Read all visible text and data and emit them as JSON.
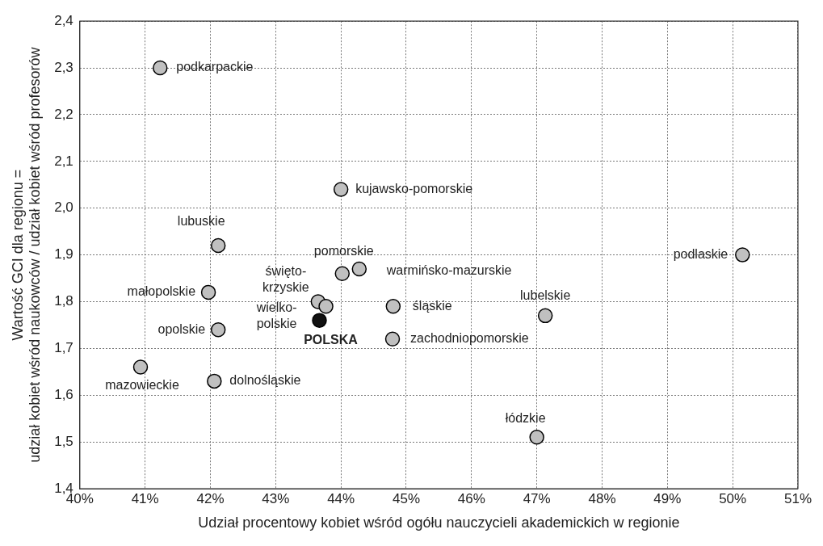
{
  "chart_data": {
    "type": "scatter",
    "xlabel": "Udział procentowy kobiet wśród ogółu nauczycieli akademickich w regionie",
    "ylabel": "Wartość GCI dla regionu =\nudział kobiet wśród naukowców / udział kobiet wśród profesorów",
    "x": [
      41.23,
      44.0,
      42.12,
      44.02,
      44.28,
      41.97,
      43.65,
      43.77,
      43.67,
      44.8,
      44.79,
      42.12,
      40.93,
      42.06,
      47.13,
      47.0,
      50.15
    ],
    "series": [
      {
        "colors": [
          "#c0c0c0",
          "#c0c0c0",
          "#c0c0c0",
          "#c0c0c0",
          "#c0c0c0",
          "#c0c0c0",
          "#c0c0c0",
          "#c0c0c0",
          "#111111",
          "#c0c0c0",
          "#c0c0c0",
          "#c0c0c0",
          "#c0c0c0",
          "#c0c0c0",
          "#c0c0c0",
          "#c0c0c0",
          "#c0c0c0"
        ],
        "values": [
          2.3,
          2.04,
          1.92,
          1.86,
          1.87,
          1.82,
          1.8,
          1.79,
          1.76,
          1.79,
          1.72,
          1.74,
          1.66,
          1.63,
          1.77,
          1.51,
          1.9
        ]
      }
    ],
    "marker": "circle",
    "annotations": [
      {
        "text": "podkarpackie",
        "x": 41.23,
        "y": 2.3
      },
      {
        "text": "kujawsko-pomorskie",
        "x": 44.0,
        "y": 2.04
      },
      {
        "text": "lubuskie",
        "x": 42.12,
        "y": 1.92
      },
      {
        "text": "pomorskie",
        "x": 44.02,
        "y": 1.86
      },
      {
        "text": "warmińsko-mazurskie",
        "x": 44.28,
        "y": 1.87
      },
      {
        "text": "małopolskie",
        "x": 41.97,
        "y": 1.82
      },
      {
        "text": "święto-\nkrzyskie",
        "x": 43.65,
        "y": 1.8
      },
      {
        "text": "wielko-\npolskie",
        "x": 43.77,
        "y": 1.79
      },
      {
        "text": "POLSKA",
        "x": 43.67,
        "y": 1.76
      },
      {
        "text": "śląskie",
        "x": 44.8,
        "y": 1.79
      },
      {
        "text": "zachodniopomorskie",
        "x": 44.79,
        "y": 1.72
      },
      {
        "text": "opolskie",
        "x": 42.12,
        "y": 1.74
      },
      {
        "text": "mazowieckie",
        "x": 40.93,
        "y": 1.66
      },
      {
        "text": "dolnośląskie",
        "x": 42.06,
        "y": 1.63
      },
      {
        "text": "lubelskie",
        "x": 47.13,
        "y": 1.77
      },
      {
        "text": "łódzkie",
        "x": 47.0,
        "y": 1.51
      },
      {
        "text": "podlaskie",
        "x": 50.15,
        "y": 1.9
      }
    ],
    "xlim": [
      40,
      51
    ],
    "xticks": [
      {
        "value": 40,
        "label": "40%"
      },
      {
        "value": 41,
        "label": "41%"
      },
      {
        "value": 42,
        "label": "42%"
      },
      {
        "value": 43,
        "label": "43%"
      },
      {
        "value": 44,
        "label": "44%"
      },
      {
        "value": 45,
        "label": "45%"
      },
      {
        "value": 46,
        "label": "46%"
      },
      {
        "value": 47,
        "label": "47%"
      },
      {
        "value": 48,
        "label": "48%"
      },
      {
        "value": 49,
        "label": "49%"
      },
      {
        "value": 50,
        "label": "50%"
      },
      {
        "value": 51,
        "label": "51%"
      }
    ],
    "ylim": [
      1.4,
      2.4
    ],
    "yticks": [
      {
        "value": 1.4,
        "label": "1,4"
      },
      {
        "value": 1.5,
        "label": "1,5"
      },
      {
        "value": 1.6,
        "label": "1,6"
      },
      {
        "value": 1.7,
        "label": "1,7"
      },
      {
        "value": 1.8,
        "label": "1,8"
      },
      {
        "value": 1.9,
        "label": "1,9"
      },
      {
        "value": 2.0,
        "label": "2,0"
      },
      {
        "value": 2.1,
        "label": "2,1"
      },
      {
        "value": 2.2,
        "label": "2,2"
      },
      {
        "value": 2.3,
        "label": "2,3"
      },
      {
        "value": 2.4,
        "label": "2,4"
      }
    ],
    "grid": true,
    "legend": false
  }
}
